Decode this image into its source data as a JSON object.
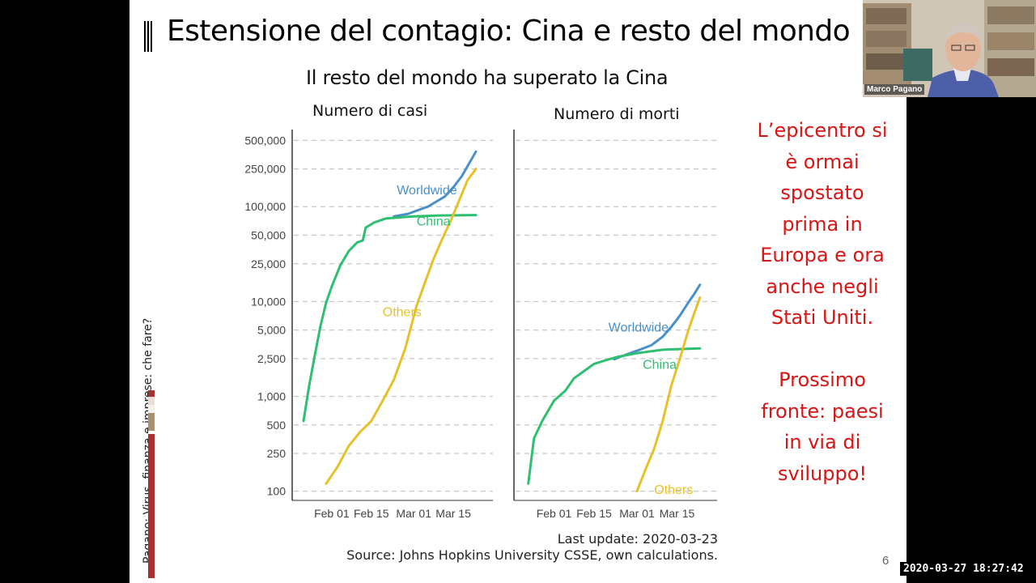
{
  "slide": {
    "title": "Estensione del contagio: Cina e resto del mondo",
    "subtitle": "Il resto del mondo ha superato la Cina",
    "side_text": [
      "L’epicentro si",
      "è ormai",
      "spostato",
      "prima in",
      "Europa e ora",
      "anche negli",
      "Stati Uniti.",
      "",
      "Prossimo",
      "fronte: paesi",
      "in via di",
      "sviluppo!"
    ],
    "footer": [
      "Last update: 2020-03-23",
      "Source: Johns Hopkins University CSSE, own calculations."
    ],
    "page_number": "6",
    "vertical_label": "Pagano: Virus, finanza e imprese: che fare?",
    "colors": {
      "accent": "#d81414",
      "worldwide": "#4a90c8",
      "china": "#2fbf71",
      "others": "#e8c02a",
      "deco_bar": "#a83232"
    }
  },
  "webcam": {
    "name": "Marco Pagano"
  },
  "timestamp": "2020-03-27 18:27:42",
  "chart_data": [
    {
      "type": "line",
      "title": "Numero di casi",
      "y_scale": "log",
      "ylim": [
        80,
        650000
      ],
      "y_ticks": [
        100,
        250,
        500,
        1000,
        2500,
        5000,
        10000,
        25000,
        50000,
        100000,
        250000,
        500000
      ],
      "y_tick_labels": [
        "100",
        "250",
        "500",
        "1,000",
        "2,500",
        "5,000",
        "10,000",
        "25,000",
        "50,000",
        "100,000",
        "250,000",
        "500,000"
      ],
      "x_ticks": [
        "2020-02-01",
        "2020-02-15",
        "2020-03-01",
        "2020-03-15"
      ],
      "x_tick_labels": [
        "Feb 01",
        "Feb 15",
        "Mar 01",
        "Mar 15"
      ],
      "xlim": [
        "2020-01-18",
        "2020-03-29"
      ],
      "grid": "horizontal dashed",
      "series": [
        {
          "name": "Worldwide",
          "x": [
            "2020-02-23",
            "2020-02-28",
            "2020-03-03",
            "2020-03-06",
            "2020-03-09",
            "2020-03-12",
            "2020-03-15",
            "2020-03-18",
            "2020-03-21",
            "2020-03-23"
          ],
          "values": [
            79000,
            84000,
            93000,
            100000,
            113000,
            128000,
            160000,
            210000,
            300000,
            380000
          ]
        },
        {
          "name": "China",
          "x": [
            "2020-01-22",
            "2020-01-24",
            "2020-01-26",
            "2020-01-28",
            "2020-01-30",
            "2020-02-01",
            "2020-02-04",
            "2020-02-07",
            "2020-02-10",
            "2020-02-12",
            "2020-02-13",
            "2020-02-16",
            "2020-02-20",
            "2020-02-25",
            "2020-03-01",
            "2020-03-10",
            "2020-03-23"
          ],
          "values": [
            550,
            1300,
            2700,
            5500,
            9700,
            14400,
            24000,
            34000,
            42000,
            44000,
            60000,
            68000,
            75000,
            77000,
            79000,
            80800,
            81500
          ]
        },
        {
          "name": "Others",
          "x": [
            "2020-01-30",
            "2020-02-03",
            "2020-02-07",
            "2020-02-11",
            "2020-02-15",
            "2020-02-19",
            "2020-02-23",
            "2020-02-27",
            "2020-03-02",
            "2020-03-05",
            "2020-03-08",
            "2020-03-11",
            "2020-03-14",
            "2020-03-17",
            "2020-03-20",
            "2020-03-23"
          ],
          "values": [
            120,
            180,
            300,
            420,
            550,
            900,
            1500,
            3200,
            9000,
            16000,
            28000,
            45000,
            70000,
            115000,
            190000,
            250000
          ]
        }
      ],
      "annotations": [
        {
          "text": "Worldwide",
          "x": "2020-02-24",
          "y": 135000
        },
        {
          "text": "China",
          "x": "2020-03-02",
          "y": 63000
        },
        {
          "text": "Others",
          "x": "2020-02-19",
          "y": 7000
        }
      ]
    },
    {
      "type": "line",
      "title": "Numero di morti",
      "y_scale": "log",
      "ylim": [
        80,
        650000
      ],
      "x_ticks": [
        "2020-02-01",
        "2020-02-15",
        "2020-03-01",
        "2020-03-15"
      ],
      "x_tick_labels": [
        "Feb 01",
        "Feb 15",
        "Mar 01",
        "Mar 15"
      ],
      "xlim": [
        "2020-01-18",
        "2020-03-29"
      ],
      "grid": "horizontal dashed",
      "series": [
        {
          "name": "Worldwide",
          "x": [
            "2020-02-22",
            "2020-02-27",
            "2020-03-02",
            "2020-03-06",
            "2020-03-10",
            "2020-03-13",
            "2020-03-16",
            "2020-03-19",
            "2020-03-21",
            "2020-03-23"
          ],
          "values": [
            2460,
            2810,
            3100,
            3460,
            4260,
            5400,
            7100,
            9800,
            12000,
            15000
          ]
        },
        {
          "name": "China",
          "x": [
            "2020-01-23",
            "2020-01-25",
            "2020-01-28",
            "2020-02-01",
            "2020-02-05",
            "2020-02-08",
            "2020-02-11",
            "2020-02-15",
            "2020-02-19",
            "2020-02-23",
            "2020-03-01",
            "2020-03-10",
            "2020-03-23"
          ],
          "values": [
            120,
            360,
            560,
            900,
            1150,
            1550,
            1800,
            2200,
            2400,
            2600,
            2850,
            3100,
            3200
          ]
        },
        {
          "name": "Others",
          "x": [
            "2020-03-01",
            "2020-03-04",
            "2020-03-07",
            "2020-03-10",
            "2020-03-13",
            "2020-03-16",
            "2020-03-19",
            "2020-03-21",
            "2020-03-23"
          ],
          "values": [
            100,
            170,
            280,
            550,
            1300,
            2500,
            5000,
            7500,
            11000
          ]
        }
      ],
      "annotations": [
        {
          "text": "Worldwide",
          "x": "2020-02-20",
          "y": 4800
        },
        {
          "text": "China",
          "x": "2020-03-03",
          "y": 1950
        },
        {
          "text": "Others",
          "x": "2020-03-07",
          "y": 94
        }
      ]
    }
  ]
}
